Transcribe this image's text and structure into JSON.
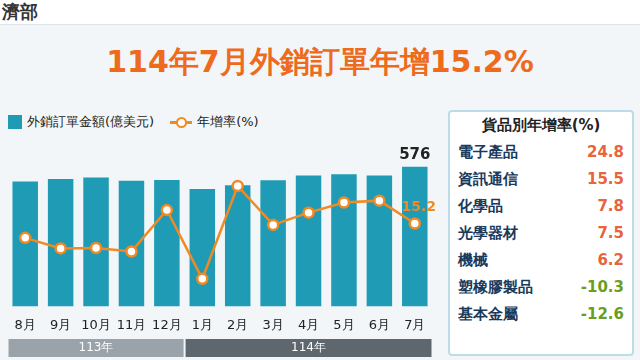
{
  "header": "濟部",
  "title": "114年7月外銷訂單年增15.2%",
  "chart_data": {
    "type": "bar",
    "categories": [
      "8月",
      "9月",
      "10月",
      "11月",
      "12月",
      "1月",
      "2月",
      "3月",
      "4月",
      "5月",
      "6月",
      "7月"
    ],
    "category_groups": [
      {
        "label": "113年",
        "categories": [
          "8月",
          "9月",
          "10月",
          "11月",
          "12月"
        ]
      },
      {
        "label": "114年",
        "categories": [
          "1月",
          "2月",
          "3月",
          "4月",
          "5月",
          "6月",
          "7月"
        ]
      }
    ],
    "series": [
      {
        "name": "外銷訂單金額(億美元)",
        "type": "bar",
        "color": "#1f9bb5",
        "values": [
          515,
          525,
          532,
          518,
          521,
          484,
          500,
          520,
          540,
          545,
          540,
          576
        ],
        "value_labels": [
          null,
          null,
          null,
          null,
          null,
          null,
          null,
          null,
          null,
          null,
          null,
          "576"
        ]
      },
      {
        "name": "年增率(%)",
        "type": "line",
        "axis": "y2",
        "color": "#f08a24",
        "marker": "circle",
        "values": [
          9.1,
          4.6,
          4.8,
          3.3,
          20.9,
          -8.3,
          31.1,
          14.6,
          19.8,
          24.1,
          24.9,
          15.2
        ],
        "value_labels": [
          null,
          null,
          null,
          null,
          null,
          null,
          null,
          null,
          null,
          null,
          null,
          "15.2"
        ]
      }
    ],
    "ylim": [
      0,
      680
    ],
    "y2lim": [
      -20,
      50
    ],
    "tick_labels": "x",
    "grid": false,
    "legend": "top left"
  },
  "goods_table": {
    "title": "貨品別年增率(%)",
    "rows": [
      [
        "電子產品",
        24.8
      ],
      [
        "資訊通信",
        15.5
      ],
      [
        "化學品",
        7.8
      ],
      [
        "光學器材",
        7.5
      ],
      [
        "機械",
        6.2
      ],
      [
        "塑橡膠製品",
        -10.3
      ],
      [
        "基本金屬",
        -12.6
      ]
    ],
    "colors": {
      "positive": "#e8643c",
      "negative": "#6b9e1e"
    }
  }
}
